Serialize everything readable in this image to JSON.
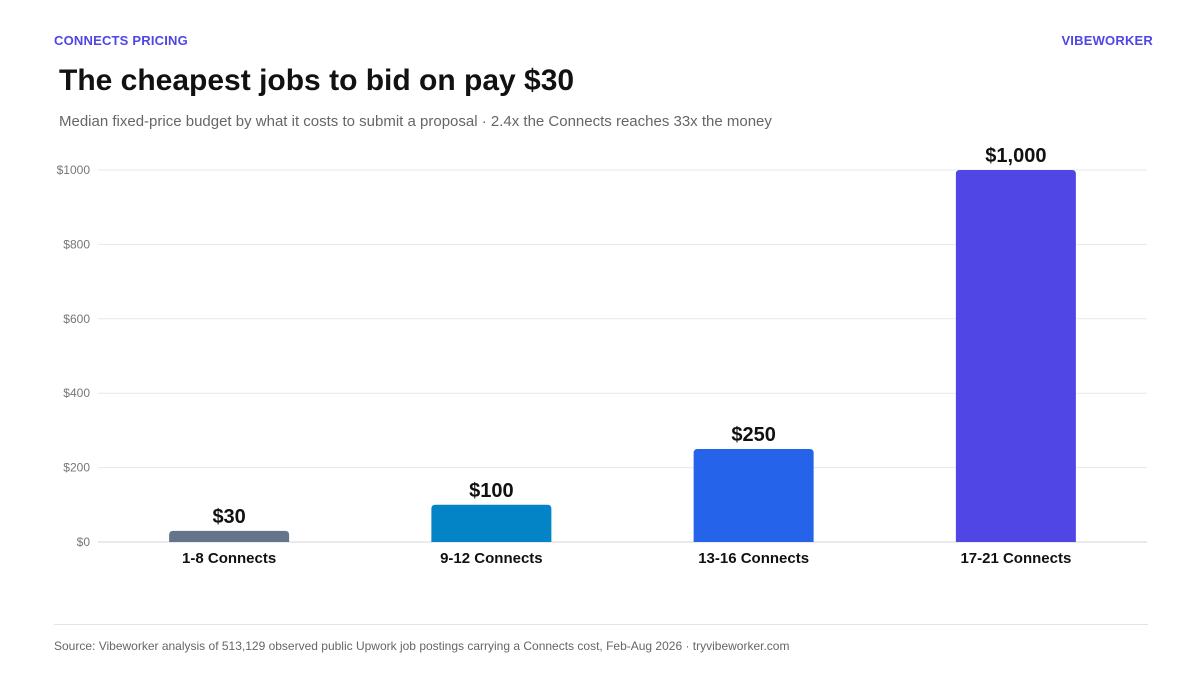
{
  "header": {
    "kicker": "CONNECTS PRICING",
    "brand": "VIBEWORKER"
  },
  "footer": {
    "source": "Source: Vibeworker analysis of 513,129 observed public Upwork job postings carrying a Connects cost, Feb-Aug 2026 · tryvibeworker.com"
  },
  "chart_data": {
    "type": "bar",
    "title": "The cheapest jobs to bid on pay $30",
    "subtitle": "Median fixed-price budget by what it costs to submit a proposal · 2.4x the Connects reaches 33x the money",
    "xlabel": "",
    "ylabel": "",
    "categories": [
      "1-8 Connects",
      "9-12 Connects",
      "13-16 Connects",
      "17-21 Connects"
    ],
    "values": [
      30,
      100,
      250,
      1000
    ],
    "data_labels": [
      "$30",
      "$100",
      "$250",
      "$1,000"
    ],
    "colors": [
      "#64748b",
      "#0284c7",
      "#2563eb",
      "#4f46e5"
    ],
    "ylim": [
      0,
      1000
    ],
    "yticks": [
      0,
      200,
      400,
      600,
      800,
      1000
    ],
    "ytick_labels": [
      "$0",
      "$200",
      "$400",
      "$600",
      "$800",
      "$1000"
    ],
    "grid": true,
    "legend": "none"
  }
}
